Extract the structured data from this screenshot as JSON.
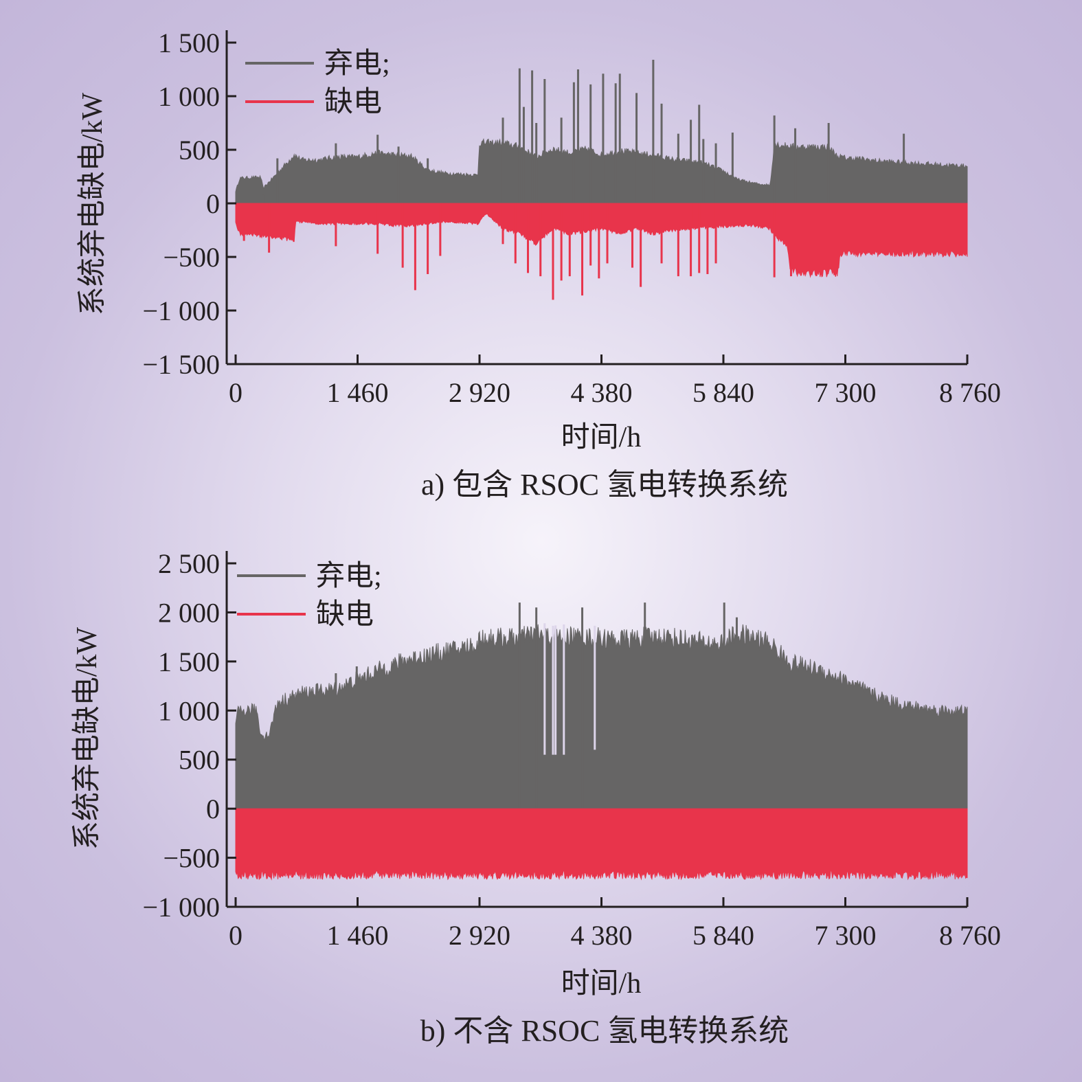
{
  "colors": {
    "curtailment": "#666565",
    "shortage": "#e8344b",
    "axis": "#231f20"
  },
  "chart_data": [
    {
      "type": "area",
      "caption": "a) 包含 RSOC 氢电转换系统",
      "xlabel": "时间/h",
      "ylabel": "系统弃电缺电/kW",
      "xlim": [
        0,
        8760
      ],
      "ylim": [
        -1500,
        1500
      ],
      "xticks": [
        0,
        1460,
        2920,
        4380,
        5840,
        7300,
        8760
      ],
      "xtick_labels": [
        "0",
        "1 460",
        "2 920",
        "4 380",
        "5 840",
        "7 300",
        "8 760"
      ],
      "yticks": [
        1500,
        1000,
        500,
        0,
        -500,
        -1000,
        -1500
      ],
      "ytick_labels": [
        "1 500",
        "1 000",
        "500",
        "0",
        "−500",
        "−1 000",
        "−1 500"
      ],
      "legend": [
        {
          "label": "弃电;",
          "color": "#666565"
        },
        {
          "label": "缺电",
          "color": "#e8344b"
        }
      ],
      "legend_position": "top-left",
      "series": [
        {
          "name": "弃电",
          "color": "#666565",
          "envelope_x": [
            0,
            50,
            300,
            330,
            500,
            700,
            800,
            1000,
            1200,
            1460,
            1700,
            1900,
            2100,
            2300,
            2500,
            2700,
            2900,
            2920,
            3000,
            3200,
            3400,
            3600,
            3800,
            4000,
            4200,
            4380,
            4600,
            4800,
            5000,
            5200,
            5400,
            5600,
            5840,
            6000,
            6200,
            6400,
            6450,
            6500,
            6700,
            6900,
            7100,
            7200,
            7300,
            7500,
            7700,
            7900,
            8100,
            8300,
            8500,
            8760
          ],
          "envelope_y": [
            120,
            250,
            260,
            150,
            300,
            480,
            430,
            430,
            460,
            460,
            500,
            480,
            470,
            330,
            300,
            290,
            280,
            600,
            600,
            600,
            560,
            460,
            540,
            500,
            540,
            480,
            520,
            500,
            480,
            440,
            420,
            400,
            320,
            240,
            200,
            180,
            600,
            580,
            560,
            560,
            560,
            470,
            450,
            440,
            420,
            410,
            400,
            390,
            380,
            370
          ],
          "spikes_x": [
            330,
            500,
            1200,
            1700,
            1950,
            2300,
            3200,
            3400,
            3450,
            3550,
            3600,
            3700,
            3900,
            4050,
            4100,
            4250,
            4400,
            4550,
            4600,
            4800,
            5000,
            5100,
            5300,
            5450,
            5550,
            5600,
            5750,
            5950,
            6450,
            6700,
            7100,
            8000
          ],
          "spikes_y": [
            80,
            420,
            560,
            640,
            530,
            420,
            800,
            1260,
            900,
            1240,
            750,
            1160,
            800,
            1130,
            1250,
            1110,
            1210,
            1120,
            1210,
            1030,
            1340,
            930,
            650,
            780,
            920,
            600,
            560,
            660,
            820,
            700,
            750,
            650
          ]
        },
        {
          "name": "缺电",
          "color": "#e8344b",
          "envelope_x": [
            0,
            50,
            300,
            600,
            700,
            720,
            1000,
            1460,
            1700,
            1900,
            2100,
            2300,
            2500,
            2700,
            2900,
            2920,
            3000,
            3200,
            3400,
            3600,
            3800,
            4000,
            4200,
            4380,
            4600,
            4800,
            5000,
            5200,
            5400,
            5600,
            5840,
            6000,
            6200,
            6400,
            6450,
            6600,
            6650,
            6700,
            6800,
            7000,
            7200,
            7250,
            7300,
            7500,
            7700,
            7900,
            8100,
            8300,
            8500,
            8760
          ],
          "envelope_y": [
            -200,
            -300,
            -320,
            -350,
            -370,
            -180,
            -200,
            -200,
            -200,
            -220,
            -220,
            -200,
            -180,
            -190,
            -200,
            -180,
            -100,
            -250,
            -300,
            -400,
            -250,
            -300,
            -280,
            -250,
            -300,
            -250,
            -300,
            -270,
            -250,
            -240,
            -230,
            -220,
            -220,
            -250,
            -320,
            -420,
            -680,
            -680,
            -690,
            -690,
            -690,
            -500,
            -500,
            -500,
            -500,
            -500,
            -500,
            -500,
            -500,
            -500
          ],
          "spikes_x": [
            100,
            400,
            1200,
            1700,
            2000,
            2150,
            2300,
            2450,
            3200,
            3350,
            3500,
            3650,
            3800,
            3900,
            4000,
            4150,
            4250,
            4350,
            4450,
            4750,
            4850,
            5100,
            5300,
            5450,
            5550,
            5650,
            5750,
            6450,
            6650
          ],
          "spikes_y": [
            -350,
            -460,
            -400,
            -470,
            -600,
            -810,
            -660,
            -490,
            -380,
            -560,
            -650,
            -680,
            -900,
            -720,
            -680,
            -860,
            -580,
            -700,
            -560,
            -600,
            -780,
            -560,
            -680,
            -680,
            -650,
            -660,
            -560,
            -690,
            -680
          ]
        }
      ]
    },
    {
      "type": "area",
      "caption": "b) 不含 RSOC 氢电转换系统",
      "xlabel": "时间/h",
      "ylabel": "系统弃电缺电/kW",
      "xlim": [
        0,
        8760
      ],
      "ylim": [
        -1000,
        2500
      ],
      "xticks": [
        0,
        1460,
        2920,
        4380,
        5840,
        7300,
        8760
      ],
      "xtick_labels": [
        "0",
        "1 460",
        "2 920",
        "4 380",
        "5 840",
        "7 300",
        "8 760"
      ],
      "yticks": [
        2500,
        2000,
        1500,
        1000,
        500,
        0,
        -500,
        -1000
      ],
      "ytick_labels": [
        "2 500",
        "2 000",
        "1 500",
        "1 000",
        "500",
        "0",
        "−500",
        "−1 000"
      ],
      "legend": [
        {
          "label": "弃电;",
          "color": "#666565"
        },
        {
          "label": "缺电",
          "color": "#e8344b"
        }
      ],
      "legend_position": "top-left",
      "series": [
        {
          "name": "弃电",
          "color": "#666565",
          "envelope_x": [
            0,
            30,
            250,
            300,
            400,
            500,
            800,
            1000,
            1200,
            1460,
            1700,
            2000,
            2200,
            2500,
            2900,
            2920,
            3200,
            3400,
            3600,
            3800,
            4000,
            4200,
            4380,
            4600,
            4800,
            5000,
            5200,
            5400,
            5600,
            5840,
            6000,
            6200,
            6400,
            6600,
            6800,
            7000,
            7200,
            7400,
            7600,
            7800,
            8000,
            8200,
            8400,
            8600,
            8760
          ],
          "envelope_y": [
            900,
            1050,
            1080,
            800,
            800,
            1150,
            1260,
            1280,
            1300,
            1400,
            1500,
            1600,
            1650,
            1700,
            1780,
            1850,
            1850,
            1850,
            1900,
            1850,
            1870,
            1850,
            1850,
            1830,
            1850,
            1860,
            1860,
            1830,
            1800,
            1790,
            1900,
            1850,
            1800,
            1600,
            1550,
            1500,
            1430,
            1350,
            1250,
            1180,
            1130,
            1090,
            1070,
            1060,
            1050
          ],
          "spikes_x": [
            1200,
            1450,
            3400,
            3600,
            4150,
            4900,
            5850,
            6000
          ],
          "spikes_y": [
            1380,
            1450,
            2100,
            2050,
            2050,
            2100,
            2100,
            1950
          ],
          "dips_x": [
            3700,
            3800,
            3830,
            3930,
            4300
          ],
          "dips_y": [
            550,
            550,
            550,
            550,
            600
          ]
        },
        {
          "name": "缺电",
          "color": "#e8344b",
          "envelope_x": [
            0,
            8760
          ],
          "envelope_y": [
            -720,
            -720
          ]
        }
      ]
    }
  ]
}
